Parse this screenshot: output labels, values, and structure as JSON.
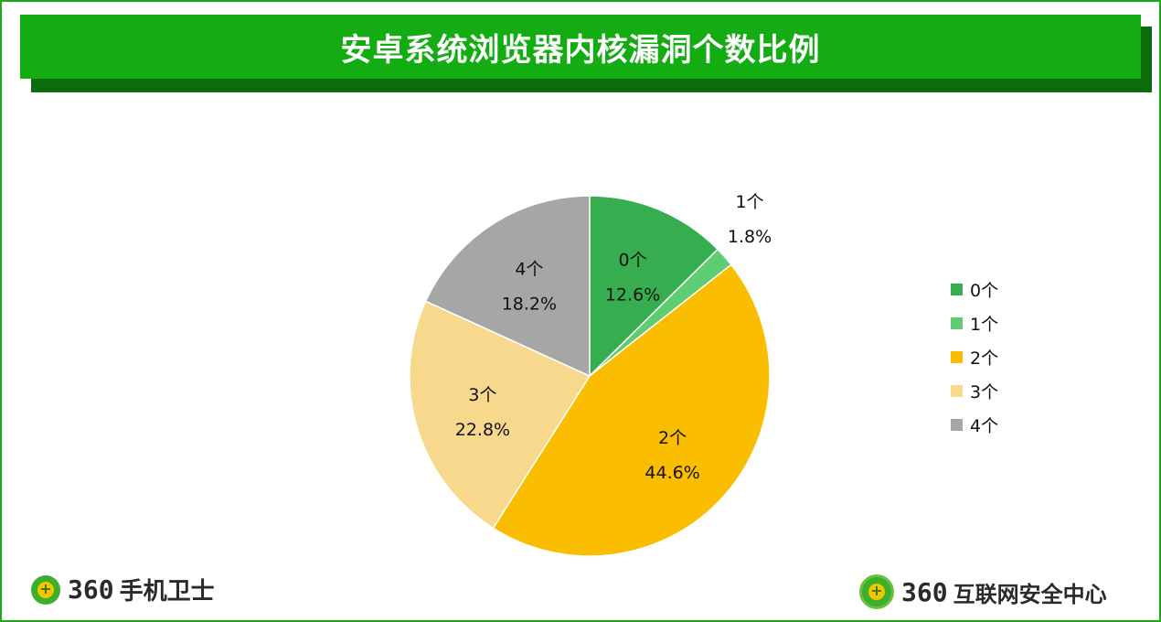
{
  "header": {
    "title": "安卓系统浏览器内核漏洞个数比例"
  },
  "chart_data": {
    "type": "pie",
    "title": "安卓系统浏览器内核漏洞个数比例",
    "categories": [
      "0个",
      "1个",
      "2个",
      "3个",
      "4个"
    ],
    "values": [
      12.6,
      1.8,
      44.6,
      22.8,
      18.2
    ],
    "value_labels": [
      "12.6%",
      "1.8%",
      "44.6%",
      "22.8%",
      "18.2%"
    ],
    "colors": [
      "#36ad4e",
      "#5dcc73",
      "#fbbd00",
      "#f8d88c",
      "#a6a6a6"
    ],
    "legend_placement": "right",
    "start_angle": "12 o'clock, clockwise"
  },
  "footer": {
    "left_logo_num": "360",
    "left_logo_text": "手机卫士",
    "right_logo_num": "360",
    "right_logo_text": "互联网安全中心"
  }
}
